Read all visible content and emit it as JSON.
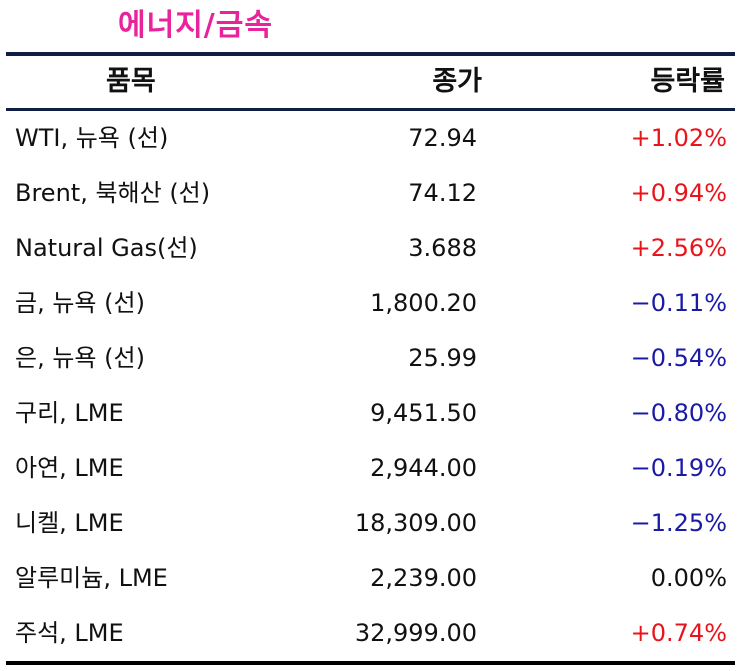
{
  "title": "에너지/금속",
  "columns": {
    "item": "품목",
    "close": "종가",
    "change": "등락률"
  },
  "rows": [
    {
      "item": "WTI, 뉴욕 (선)",
      "close": "72.94",
      "change": "+1.02%",
      "direction": "up"
    },
    {
      "item": "Brent, 북해산 (선)",
      "close": "74.12",
      "change": "+0.94%",
      "direction": "up"
    },
    {
      "item": "Natural Gas(선)",
      "close": "3.688",
      "change": "+2.56%",
      "direction": "up"
    },
    {
      "item": "금, 뉴욕  (선)",
      "close": "1,800.20",
      "change": "−0.11%",
      "direction": "down"
    },
    {
      "item": "은, 뉴욕  (선)",
      "close": "25.99",
      "change": "−0.54%",
      "direction": "down"
    },
    {
      "item": "구리, LME",
      "close": "9,451.50",
      "change": "−0.80%",
      "direction": "down"
    },
    {
      "item": "아연, LME",
      "close": "2,944.00",
      "change": "−0.19%",
      "direction": "down"
    },
    {
      "item": "니켈, LME",
      "close": "18,309.00",
      "change": "−1.25%",
      "direction": "down"
    },
    {
      "item": "알루미늄, LME",
      "close": "2,239.00",
      "change": "0.00%",
      "direction": "flat"
    },
    {
      "item": "주석, LME",
      "close": "32,999.00",
      "change": "+0.74%",
      "direction": "up"
    }
  ],
  "colors": {
    "title": "#e8239c",
    "rule": "#0e1e45",
    "up": "#e8141b",
    "down": "#1a1aa6",
    "flat": "#111111"
  }
}
